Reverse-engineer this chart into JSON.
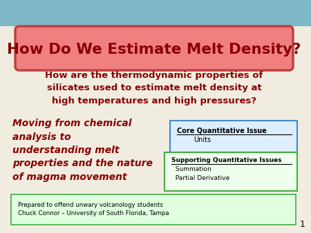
{
  "title": "How Do We Estimate Melt Density?",
  "subtitle": "How are the thermodynamic properties of\nsilicates used to estimate melt density at\nhigh temperatures and high pressures?",
  "italic_text": "Moving from chemical\nanalysis to\nunderstanding melt\nproperties and the nature\nof magma movement",
  "core_box_title": "Core Quantitative Issue",
  "core_box_items": "Units",
  "support_box_title": "Supporting Quantitative Issues",
  "support_box_items": "  Summation\n  Partial Derivative",
  "footer_line1": "Prepared to offend unwary volcanology students",
  "footer_line2": "Chuck Connor – University of South Florida, Tampa",
  "slide_number": "1",
  "bg_color_top": "#7fb8c8",
  "bg_color_main": "#f0ede0",
  "title_box_fill": "#f08080",
  "title_box_edge": "#c04040",
  "title_text_color": "#8b0000",
  "subtitle_color": "#8b0000",
  "italic_color": "#8b0000",
  "core_box_fill": "#ddeeff",
  "core_box_edge": "#4488cc",
  "support_box_fill": "#eeffee",
  "support_box_edge": "#44aa44",
  "footer_fill": "#dfffdf",
  "footer_edge": "#44aa44"
}
